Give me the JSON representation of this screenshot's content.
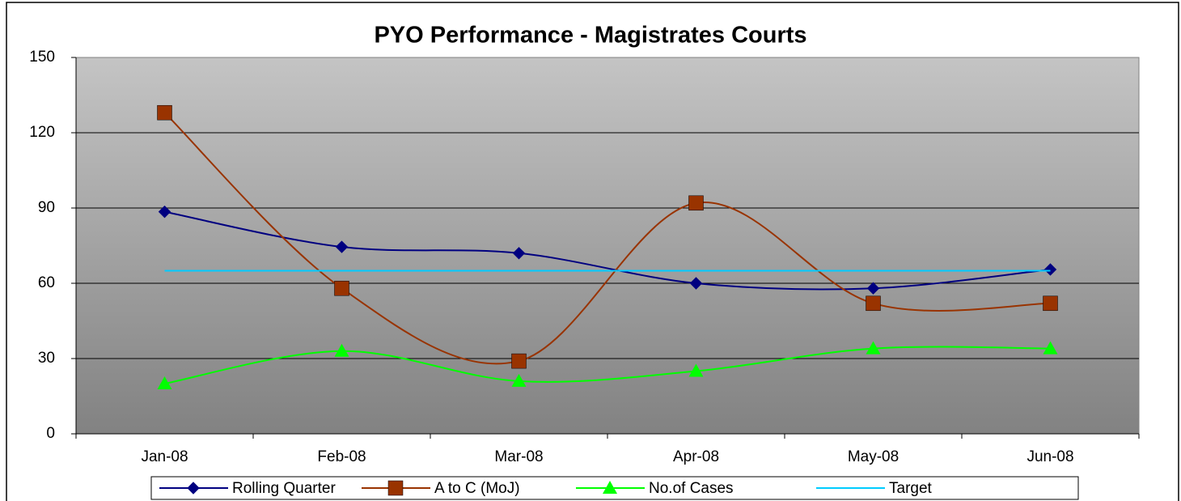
{
  "chart_data": {
    "type": "line",
    "title": "PYO Performance - Magistrates Courts",
    "categories": [
      "Jan-08",
      "Feb-08",
      "Mar-08",
      "Apr-08",
      "May-08",
      "Jun-08"
    ],
    "series": [
      {
        "name": "Rolling Quarter",
        "color": "#000080",
        "marker": "diamond",
        "values": [
          88.5,
          74.5,
          72,
          60,
          58,
          65.5
        ]
      },
      {
        "name": "A to C (MoJ)",
        "color": "#993300",
        "marker": "square",
        "values": [
          128,
          58,
          29,
          92,
          52,
          52
        ]
      },
      {
        "name": "No.of Cases",
        "color": "#00ff00",
        "marker": "triangle",
        "values": [
          20,
          33,
          21,
          25,
          34,
          34
        ]
      },
      {
        "name": "Target",
        "color": "#00ccff",
        "marker": "none",
        "values": [
          65,
          65,
          65,
          65,
          65,
          65
        ]
      }
    ],
    "ylim": [
      0,
      150
    ],
    "yticks": [
      0,
      30,
      60,
      90,
      120,
      150
    ],
    "grid": true,
    "smooth": true,
    "legend": "bottom"
  }
}
